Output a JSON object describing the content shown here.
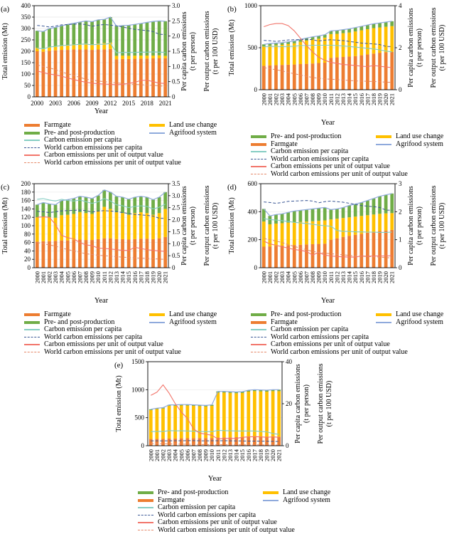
{
  "figure": {
    "axis_titles": {
      "y_left": "Total emission (Mt)",
      "x": "Year",
      "y_right_capita_1": "Per capita carbon emissions",
      "y_right_capita_2": "(t per person)",
      "y_right_output_1": "Per output carbon emissions",
      "y_right_output_2": "(t per 100 USD)"
    },
    "series_labels": {
      "farmgate": "Farmgate",
      "pre_post": "Pre- and post-production",
      "land_use": "Land use change",
      "agrifood": "Agrifood system",
      "per_capita": "Carbon emission per capita",
      "world_per_capita": "World carbon emissions per capita",
      "per_output": "Carbon emissions per unit of output value",
      "world_per_output": "World carbon emissions per unit of output value"
    },
    "colors": {
      "farmgate": "#ED7D31",
      "land_use": "#FFC000",
      "pre_post": "#70AD47",
      "agrifood": "#8FAADC",
      "per_capita": "#85CDC3",
      "world_per_capita": "#3A5795",
      "per_output": "#F2756B",
      "world_per_output": "#E58868",
      "grid": "#E9E9E9",
      "frame": "#000000"
    },
    "years": [
      2000,
      2001,
      2002,
      2003,
      2004,
      2005,
      2006,
      2007,
      2008,
      2009,
      2010,
      2011,
      2012,
      2013,
      2014,
      2015,
      2016,
      2017,
      2018,
      2019,
      2020,
      2021
    ],
    "world": {
      "per_capita": [
        2.35,
        2.33,
        2.3,
        2.33,
        2.37,
        2.38,
        2.39,
        2.4,
        2.38,
        2.32,
        2.36,
        2.38,
        2.36,
        2.34,
        2.3,
        2.26,
        2.22,
        2.2,
        2.18,
        2.15,
        2.06,
        2.05
      ],
      "per_output": [
        1.05,
        1.0,
        0.95,
        0.9,
        0.82,
        0.76,
        0.7,
        0.64,
        0.58,
        0.55,
        0.52,
        0.5,
        0.48,
        0.46,
        0.44,
        0.42,
        0.41,
        0.4,
        0.39,
        0.38,
        0.36,
        0.35
      ]
    }
  },
  "chart_data": [
    {
      "id": "a",
      "tag": "(a)",
      "type": "bar",
      "y_left": {
        "max": 400,
        "step": 50,
        "dec": 0
      },
      "y_right": {
        "max": 3,
        "step": 0.5,
        "dec": 1
      },
      "x_rotated": false,
      "x_label_every": 3,
      "legend_first_two": [
        "farmgate",
        "pre_post"
      ],
      "series": {
        "farmgate": [
          200,
          198,
          202,
          204,
          206,
          206,
          208,
          208,
          208,
          206,
          208,
          208,
          210,
          165,
          166,
          166,
          167,
          168,
          168,
          169,
          170,
          169
        ],
        "land_use": [
          15,
          15,
          15,
          16,
          18,
          20,
          22,
          24,
          26,
          24,
          26,
          28,
          28,
          15,
          15,
          14,
          14,
          13,
          13,
          12,
          12,
          11
        ],
        "pre_post": [
          75,
          74,
          83,
          85,
          88,
          92,
          93,
          96,
          99,
          100,
          104,
          104,
          112,
          130,
          132,
          134,
          137,
          141,
          146,
          150,
          151,
          152
        ],
        "per_capita": [
          1.6,
          1.58,
          1.64,
          1.66,
          1.69,
          1.7,
          1.71,
          1.73,
          1.74,
          1.71,
          1.73,
          1.73,
          1.76,
          1.45,
          1.46,
          1.46,
          1.46,
          1.47,
          1.47,
          1.48,
          1.47,
          1.46
        ],
        "per_output": [
          0.85,
          0.8,
          0.75,
          0.72,
          0.68,
          0.62,
          0.57,
          0.52,
          0.48,
          0.45,
          0.43,
          0.42,
          0.41,
          0.4,
          0.41,
          0.44,
          0.48,
          0.54,
          0.55,
          0.5,
          0.45,
          0.44
        ]
      }
    },
    {
      "id": "b",
      "tag": "(b)",
      "type": "bar",
      "y_left": {
        "max": 1000,
        "step": 500,
        "dec": 0
      },
      "y_right": {
        "max": 4,
        "step": 2,
        "dec": 0
      },
      "x_rotated": true,
      "x_label_every": 1,
      "legend_first_two": [
        "pre_post",
        "farmgate"
      ],
      "series": {
        "farmgate": [
          285,
          290,
          292,
          295,
          298,
          300,
          305,
          308,
          312,
          318,
          322,
          380,
          385,
          390,
          395,
          400,
          410,
          420,
          430,
          440,
          445,
          450
        ],
        "land_use": [
          230,
          235,
          237,
          239,
          245,
          252,
          265,
          277,
          286,
          289,
          298,
          282,
          280,
          283,
          286,
          294,
          297,
          300,
          303,
          301,
          304,
          307
        ],
        "pre_post": [
          25,
          25,
          26,
          26,
          27,
          28,
          30,
          30,
          32,
          33,
          35,
          38,
          40,
          42,
          44,
          46,
          48,
          50,
          52,
          54,
          56,
          58
        ],
        "per_capita": [
          2.05,
          2.06,
          2.06,
          2.05,
          2.06,
          2.07,
          2.1,
          2.1,
          2.12,
          2.12,
          2.12,
          2.12,
          2.1,
          2.08,
          2.06,
          2.03,
          2.0,
          1.97,
          1.94,
          1.9,
          1.84,
          1.8
        ],
        "per_output": [
          3.0,
          3.1,
          3.15,
          3.15,
          3.05,
          2.8,
          2.45,
          2.1,
          1.8,
          1.55,
          1.4,
          1.3,
          1.25,
          1.2,
          1.18,
          1.15,
          1.12,
          1.1,
          1.15,
          1.12,
          1.08,
          1.05
        ]
      }
    },
    {
      "id": "c",
      "tag": "(c)",
      "type": "bar",
      "y_left": {
        "max": 200,
        "step": 20,
        "dec": 0
      },
      "y_right": {
        "max": 3.5,
        "step": 0.5,
        "dec": 1
      },
      "x_rotated": true,
      "x_label_every": 1,
      "legend_first_two": [
        "farmgate",
        "pre_post"
      ],
      "series": {
        "farmgate": [
          62,
          63,
          63,
          64,
          65,
          65,
          66,
          67,
          66,
          66,
          68,
          70,
          70,
          68,
          68,
          67,
          68,
          69,
          69,
          68,
          70,
          73
        ],
        "land_use": [
          58,
          59,
          57,
          55,
          60,
          61,
          62,
          65,
          64,
          62,
          66,
          75,
          70,
          64,
          62,
          59,
          62,
          63,
          61,
          58,
          60,
          67
        ],
        "pre_post": [
          30,
          33,
          32,
          31,
          35,
          36,
          37,
          38,
          38,
          37,
          38,
          40,
          40,
          38,
          38,
          37,
          38,
          38,
          38,
          36,
          38,
          40
        ],
        "per_capita": [
          2.85,
          2.88,
          2.82,
          2.78,
          2.85,
          2.8,
          2.78,
          2.82,
          2.75,
          2.68,
          2.75,
          2.88,
          2.78,
          2.62,
          2.58,
          2.5,
          2.55,
          2.58,
          2.55,
          2.45,
          2.52,
          2.65
        ],
        "per_output": [
          2.1,
          2.12,
          2.1,
          1.8,
          1.35,
          1.25,
          1.2,
          1.05,
          0.95,
          0.92,
          0.82,
          0.8,
          0.78,
          0.75,
          0.72,
          0.72,
          0.85,
          0.8,
          0.75,
          0.72,
          0.7,
          0.68
        ]
      }
    },
    {
      "id": "d",
      "tag": "(d)",
      "type": "bar",
      "y_left": {
        "max": 600,
        "step": 200,
        "dec": 0
      },
      "y_right": {
        "max": 3,
        "step": 1,
        "dec": 0
      },
      "x_rotated": true,
      "x_label_every": 1,
      "legend_first_two": [
        "pre_post",
        "farmgate"
      ],
      "series": {
        "farmgate": [
          150,
          152,
          155,
          158,
          160,
          162,
          164,
          166,
          168,
          170,
          172,
          200,
          210,
          220,
          228,
          235,
          242,
          250,
          256,
          262,
          266,
          270
        ],
        "land_use": [
          180,
          158,
          160,
          160,
          162,
          163,
          164,
          164,
          164,
          165,
          166,
          145,
          140,
          135,
          132,
          130,
          128,
          125,
          124,
          123,
          122,
          120
        ],
        "pre_post": [
          90,
          60,
          65,
          67,
          73,
          80,
          82,
          85,
          88,
          90,
          92,
          70,
          70,
          75,
          85,
          90,
          95,
          105,
          115,
          125,
          132,
          140
        ],
        "per_capita": [
          1.75,
          1.72,
          1.7,
          1.68,
          1.65,
          1.62,
          1.6,
          1.58,
          1.55,
          1.52,
          1.5,
          1.48,
          1.33,
          1.3,
          1.3,
          1.28,
          1.28,
          1.27,
          1.27,
          1.26,
          1.26,
          1.27
        ],
        "per_output": [
          0.95,
          0.85,
          0.8,
          0.75,
          0.7,
          0.65,
          0.62,
          0.58,
          0.45,
          0.55,
          0.45,
          0.42,
          0.4,
          0.39,
          0.38,
          0.38,
          0.42,
          0.41,
          0.42,
          0.42,
          0.42,
          0.43
        ]
      }
    },
    {
      "id": "e",
      "tag": "(e)",
      "type": "bar",
      "y_left": {
        "max": 1500,
        "step": 500,
        "dec": 0
      },
      "y_right": {
        "max": 40,
        "step": 20,
        "dec": 0
      },
      "x_rotated": true,
      "x_label_every": 1,
      "legend_first_two": [
        "pre_post",
        "farmgate"
      ],
      "series": {
        "farmgate": [
          120,
          122,
          125,
          128,
          130,
          132,
          134,
          135,
          136,
          137,
          138,
          145,
          148,
          150,
          152,
          154,
          156,
          158,
          158,
          159,
          160,
          160
        ],
        "land_use": [
          515,
          533,
          539,
          586,
          583,
          586,
          583,
          577,
          571,
          564,
          573,
          803,
          800,
          792,
          785,
          787,
          810,
          817,
          812,
          806,
          814,
          814
        ],
        "pre_post": [
          15,
          15,
          16,
          16,
          17,
          17,
          18,
          18,
          18,
          19,
          19,
          22,
          22,
          23,
          23,
          24,
          24,
          25,
          25,
          25,
          26,
          26
        ],
        "per_capita": [
          6.7,
          6.8,
          6.8,
          7.2,
          7.1,
          7.1,
          7.0,
          6.9,
          6.8,
          6.7,
          6.7,
          7.3,
          7.2,
          7.1,
          7.0,
          7.0,
          7.0,
          7.0,
          6.8,
          6.6,
          5.8,
          5.4
        ],
        "per_output": [
          24,
          25.5,
          29,
          25,
          20,
          16,
          13,
          8,
          6,
          5.5,
          5,
          3.2,
          3.5,
          3.5,
          3.5,
          4,
          4.2,
          4.3,
          4.2,
          4,
          4.2,
          4
        ]
      }
    }
  ]
}
